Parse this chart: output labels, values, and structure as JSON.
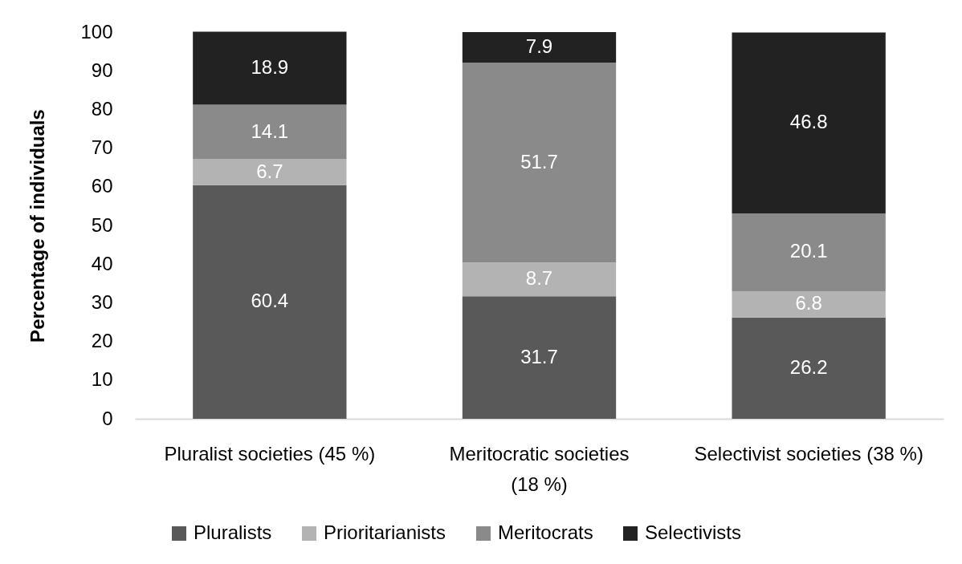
{
  "chart_data": {
    "type": "bar",
    "ylabel": "Percentage of individuals",
    "categories": [
      "Pluralist societies (45 %)",
      "Meritocratic societies (18 %)",
      "Selectivist societies (38 %)"
    ],
    "series": [
      {
        "name": "Pluralists",
        "color": "#595959",
        "values": [
          60.4,
          31.7,
          26.2
        ]
      },
      {
        "name": "Prioritarianists",
        "color": "#b3b3b3",
        "values": [
          6.7,
          8.7,
          6.8
        ]
      },
      {
        "name": "Meritocrats",
        "color": "#8a8a8a",
        "values": [
          14.1,
          51.7,
          20.1
        ]
      },
      {
        "name": "Selectivists",
        "color": "#222222",
        "values": [
          18.9,
          7.9,
          46.8
        ]
      }
    ],
    "stacked": true,
    "ylim": [
      0,
      100
    ],
    "yticks": [
      0,
      10,
      20,
      30,
      40,
      50,
      60,
      70,
      80,
      90,
      100
    ],
    "legend": "bottom",
    "data_labels": true
  }
}
